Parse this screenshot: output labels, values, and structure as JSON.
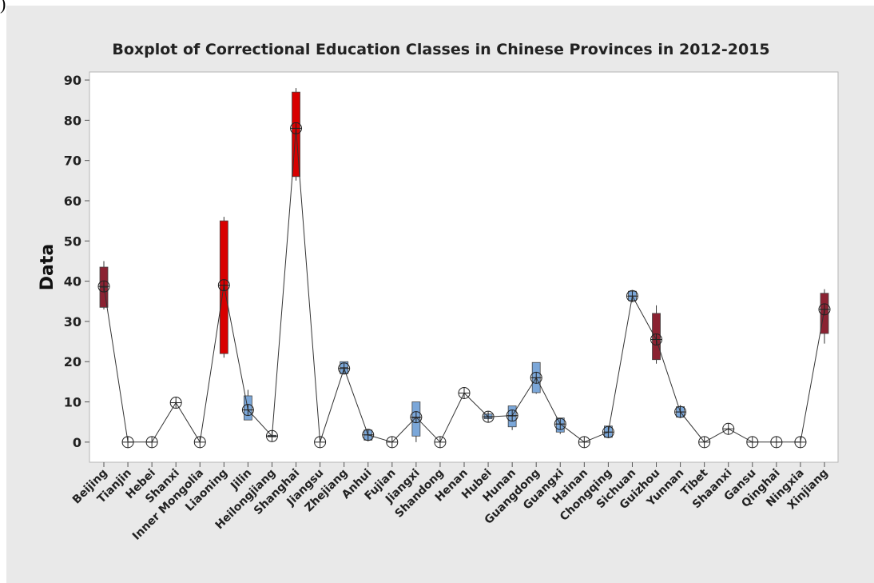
{
  "corner_mark": ")",
  "chart_data": {
    "type": "boxplot",
    "title": "Boxplot of Correctional Education Classes in Chinese Provinces in 2012-2015",
    "xlabel": "",
    "ylabel": "Data",
    "ylim": [
      -5,
      92
    ],
    "yticks": [
      0,
      10,
      20,
      30,
      40,
      50,
      60,
      70,
      80,
      90
    ],
    "grid": false,
    "legend": "none",
    "colors": {
      "background": "#e9e9e9",
      "plot_area": "#ffffff",
      "red": "#d80000",
      "maroon": "#8b2232",
      "blue": "#7ba7d9",
      "line": "#333333"
    },
    "categories": [
      "Beijing",
      "Tianjin",
      "Hebei",
      "Shanxi",
      "Inner Mongolia",
      "Liaoning",
      "Jilin",
      "Heilongjiang",
      "Shanghai",
      "Jiangsu",
      "Zhejiang",
      "Anhui",
      "Fujian",
      "Jiangxi",
      "Shandong",
      "Henan",
      "Hubei",
      "Hunan",
      "Guangdong",
      "Guangxi",
      "Hainan",
      "Chongqing",
      "Sichuan",
      "Guizhou",
      "Yunnan",
      "Tibet",
      "Shaanxi",
      "Gansu",
      "Qinghai",
      "Ningxia",
      "Xinjiang"
    ],
    "boxes": [
      {
        "min": 33,
        "q1": 33.5,
        "median": 38.5,
        "q3": 43.5,
        "max": 45,
        "mean": 38.7,
        "color": "maroon"
      },
      {
        "min": 0,
        "q1": 0,
        "median": 0,
        "q3": 0,
        "max": 0,
        "mean": 0,
        "color": "none"
      },
      {
        "min": 0,
        "q1": 0,
        "median": 0,
        "q3": 0,
        "max": 0,
        "mean": 0,
        "color": "none"
      },
      {
        "min": 9.5,
        "q1": 9.6,
        "median": 9.8,
        "q3": 10,
        "max": 10.2,
        "mean": 9.8,
        "color": "none"
      },
      {
        "min": 0,
        "q1": 0,
        "median": 0,
        "q3": 0,
        "max": 0,
        "mean": 0,
        "color": "none"
      },
      {
        "min": 21,
        "q1": 22,
        "median": 39,
        "q3": 55,
        "max": 56,
        "mean": 39,
        "color": "red"
      },
      {
        "min": 5.5,
        "q1": 5.5,
        "median": 8,
        "q3": 11.5,
        "max": 13,
        "mean": 8,
        "color": "blue"
      },
      {
        "min": 1.2,
        "q1": 1.3,
        "median": 1.5,
        "q3": 1.7,
        "max": 1.8,
        "mean": 1.5,
        "color": "blue"
      },
      {
        "min": 65,
        "q1": 66,
        "median": 78,
        "q3": 87,
        "max": 88,
        "mean": 78,
        "color": "red"
      },
      {
        "min": 0,
        "q1": 0,
        "median": 0,
        "q3": 0,
        "max": 0,
        "mean": 0,
        "color": "none"
      },
      {
        "min": 17,
        "q1": 17,
        "median": 18.5,
        "q3": 20,
        "max": 20,
        "mean": 18.3,
        "color": "blue"
      },
      {
        "min": 0.2,
        "q1": 0.5,
        "median": 1.8,
        "q3": 3,
        "max": 3,
        "mean": 1.8,
        "color": "blue"
      },
      {
        "min": 0,
        "q1": 0,
        "median": 0,
        "q3": 0,
        "max": 0,
        "mean": 0,
        "color": "none"
      },
      {
        "min": 0,
        "q1": 1.5,
        "median": 6,
        "q3": 10,
        "max": 10,
        "mean": 6.2,
        "color": "blue"
      },
      {
        "min": 0,
        "q1": 0,
        "median": 0,
        "q3": 0,
        "max": 0,
        "mean": 0,
        "color": "none"
      },
      {
        "min": 12,
        "q1": 12,
        "median": 12.2,
        "q3": 12.5,
        "max": 12.5,
        "mean": 12.2,
        "color": "none"
      },
      {
        "min": 5.8,
        "q1": 5.8,
        "median": 6.2,
        "q3": 7,
        "max": 7,
        "mean": 6.3,
        "color": "blue"
      },
      {
        "min": 3,
        "q1": 3.8,
        "median": 6.5,
        "q3": 9,
        "max": 9,
        "mean": 6.6,
        "color": "blue"
      },
      {
        "min": 12,
        "q1": 12.3,
        "median": 16,
        "q3": 19.8,
        "max": 19.8,
        "mean": 16,
        "color": "blue"
      },
      {
        "min": 2,
        "q1": 2.5,
        "median": 4.5,
        "q3": 6,
        "max": 6,
        "mean": 4.5,
        "color": "blue"
      },
      {
        "min": 0,
        "q1": 0,
        "median": 0,
        "q3": 0,
        "max": 0,
        "mean": 0,
        "color": "none"
      },
      {
        "min": 1,
        "q1": 1.2,
        "median": 2.5,
        "q3": 4,
        "max": 4,
        "mean": 2.5,
        "color": "blue"
      },
      {
        "min": 35,
        "q1": 35.2,
        "median": 36.3,
        "q3": 37.5,
        "max": 37.8,
        "mean": 36.3,
        "color": "blue"
      },
      {
        "min": 19.5,
        "q1": 20.5,
        "median": 25.5,
        "q3": 32,
        "max": 34,
        "mean": 25.5,
        "color": "maroon"
      },
      {
        "min": 6,
        "q1": 6.2,
        "median": 7.5,
        "q3": 8.8,
        "max": 9.2,
        "mean": 7.5,
        "color": "blue"
      },
      {
        "min": 0,
        "q1": 0,
        "median": 0,
        "q3": 0,
        "max": 0,
        "mean": 0,
        "color": "none"
      },
      {
        "min": 3,
        "q1": 3,
        "median": 3.3,
        "q3": 3.6,
        "max": 3.6,
        "mean": 3.3,
        "color": "none"
      },
      {
        "min": 0,
        "q1": 0,
        "median": 0,
        "q3": 0,
        "max": 0,
        "mean": 0,
        "color": "none"
      },
      {
        "min": 0,
        "q1": 0,
        "median": 0,
        "q3": 0,
        "max": 0,
        "mean": 0,
        "color": "none"
      },
      {
        "min": 0,
        "q1": 0,
        "median": 0,
        "q3": 0,
        "max": 0,
        "mean": 0,
        "color": "none"
      },
      {
        "min": 24.5,
        "q1": 27,
        "median": 33,
        "q3": 37,
        "max": 38,
        "mean": 33,
        "color": "maroon"
      }
    ]
  }
}
